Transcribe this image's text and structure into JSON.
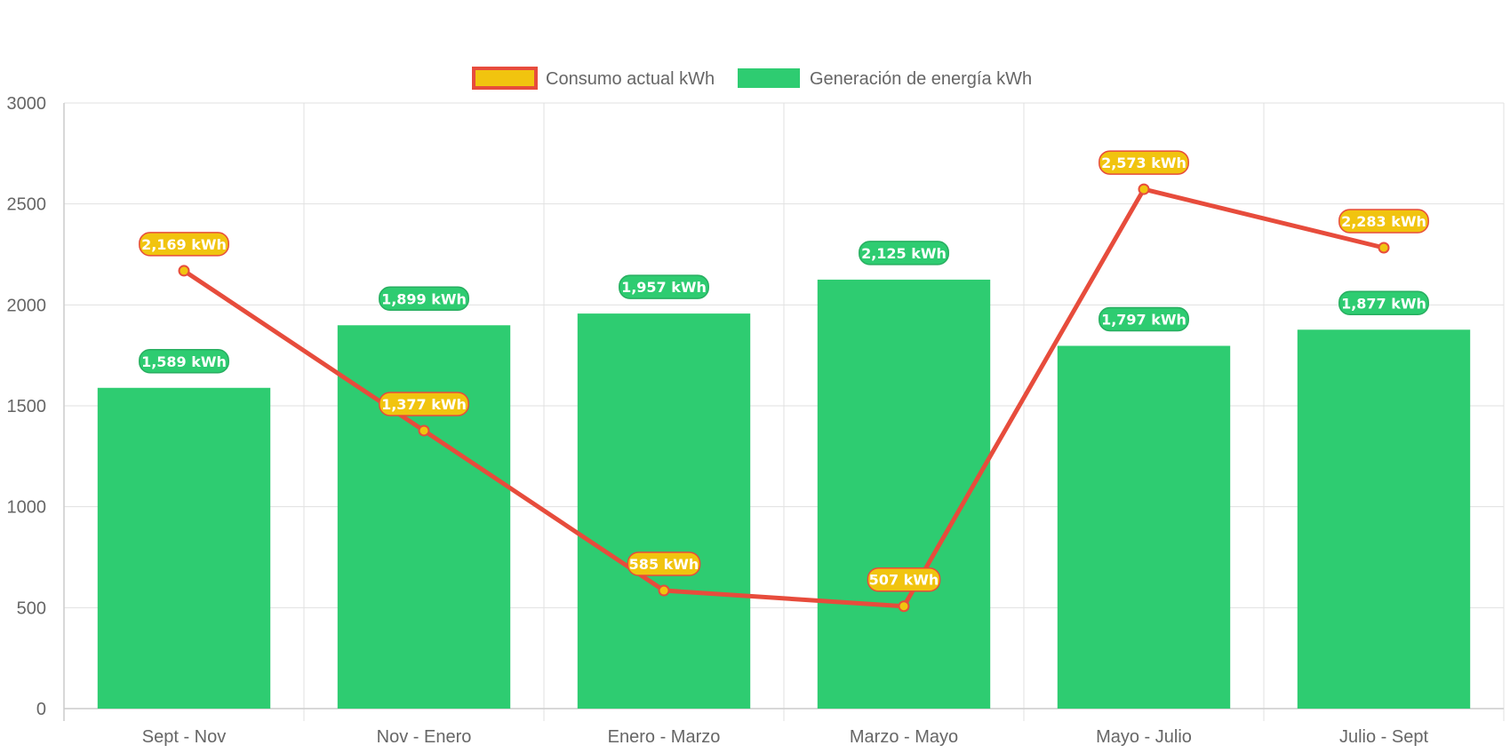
{
  "chart_data": {
    "type": "bar",
    "categories": [
      "Sept - Nov",
      "Nov - Enero",
      "Enero - Marzo",
      "Marzo - Mayo",
      "Mayo - Julio",
      "Julio - Sept"
    ],
    "series": [
      {
        "name": "Consumo actual kWh",
        "kind": "line",
        "values": [
          2169,
          1377,
          585,
          507,
          2573,
          2283
        ],
        "labels": [
          "2,169 kWh",
          "1,377 kWh",
          "585 kWh",
          "507 kWh",
          "2,573 kWh",
          "2,283 kWh"
        ],
        "color": "#e74c3c",
        "fill_color": "#f1c40f"
      },
      {
        "name": "Generación de energía kWh",
        "kind": "bar",
        "values": [
          1589,
          1899,
          1957,
          2125,
          1797,
          1877
        ],
        "labels": [
          "1,589 kWh",
          "1,899 kWh",
          "1,957 kWh",
          "2,125 kWh",
          "1,797 kWh",
          "1,877 kWh"
        ],
        "color": "#2ecc71"
      }
    ],
    "y_ticks": [
      "0",
      "500",
      "1000",
      "1500",
      "2000",
      "2500",
      "3000"
    ],
    "ylim": [
      0,
      3000
    ],
    "grid": true,
    "legend_position": "top-center"
  }
}
